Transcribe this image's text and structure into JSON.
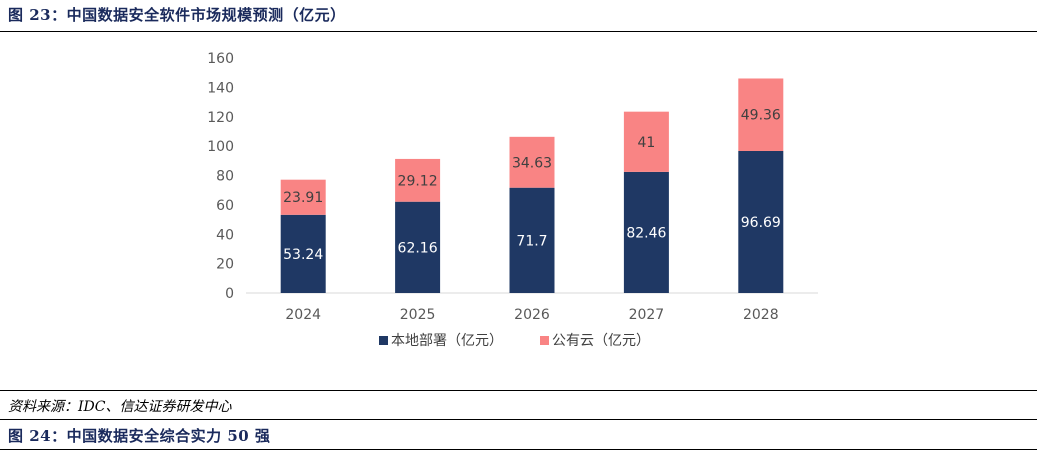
{
  "figure_title": "图 23：中国数据安全软件市场规模预测（亿元）",
  "source_note": "资料来源：IDC、信达证券研发中心",
  "next_figure_title": "图 24：中国数据安全综合实力 50 强",
  "chart_data": {
    "type": "bar",
    "stacked": true,
    "categories": [
      "2024",
      "2025",
      "2026",
      "2027",
      "2028"
    ],
    "series": [
      {
        "name": "本地部署（亿元）",
        "values": [
          53.24,
          62.16,
          71.7,
          82.46,
          96.69
        ],
        "labels": [
          "53.24",
          "62.16",
          "71.7",
          "82.46",
          "96.69"
        ],
        "color": "#1f3864"
      },
      {
        "name": "公有云（亿元）",
        "values": [
          23.91,
          29.12,
          34.63,
          41,
          49.36
        ],
        "labels": [
          "23.91",
          "29.12",
          "34.63",
          "41",
          "49.36"
        ],
        "color": "#f98484"
      }
    ],
    "ylim": [
      0,
      160
    ],
    "yticks": [
      "0",
      "20",
      "40",
      "60",
      "80",
      "100",
      "120",
      "140",
      "160"
    ],
    "grid": false,
    "legend": "bottom"
  }
}
